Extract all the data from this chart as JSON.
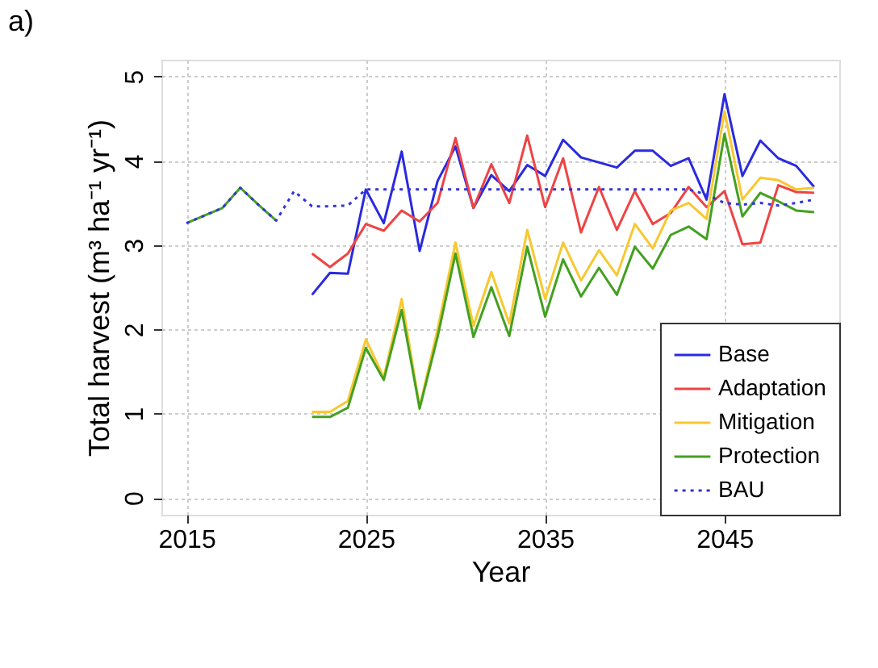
{
  "chart_data": {
    "type": "line",
    "title": "a)",
    "xlabel": "Year",
    "ylabel": "Total harvest (m³ ha⁻¹ yr⁻¹)",
    "x": [
      2015,
      2016,
      2017,
      2018,
      2019,
      2020,
      2021,
      2022,
      2023,
      2024,
      2025,
      2026,
      2027,
      2028,
      2029,
      2030,
      2031,
      2032,
      2033,
      2034,
      2035,
      2036,
      2037,
      2038,
      2039,
      2040,
      2041,
      2042,
      2043,
      2044,
      2045,
      2046,
      2047,
      2048,
      2049,
      2050
    ],
    "series": [
      {
        "name": "Base",
        "color": "#2a2ae0",
        "line_style": "solid",
        "values": [
          null,
          null,
          null,
          null,
          null,
          null,
          null,
          2.41,
          2.67,
          2.66,
          3.66,
          3.26,
          4.11,
          2.93,
          3.76,
          4.17,
          3.44,
          3.83,
          3.64,
          3.95,
          3.82,
          4.25,
          4.04,
          3.98,
          3.92,
          4.12,
          4.12,
          3.94,
          4.03,
          3.54,
          4.79,
          3.82,
          4.24,
          4.03,
          3.94,
          3.69
        ]
      },
      {
        "name": "Adaptation",
        "color": "#ee4444",
        "line_style": "solid",
        "values": [
          null,
          null,
          null,
          null,
          null,
          null,
          null,
          2.9,
          2.74,
          2.9,
          3.25,
          3.17,
          3.41,
          3.28,
          3.5,
          4.27,
          3.44,
          3.96,
          3.5,
          4.3,
          3.45,
          4.03,
          3.15,
          3.69,
          3.18,
          3.64,
          3.25,
          3.38,
          3.69,
          3.45,
          3.64,
          3.01,
          3.03,
          3.71,
          3.63,
          3.62
        ]
      },
      {
        "name": "Mitigation",
        "color": "#f8c830",
        "line_style": "solid",
        "values": [
          null,
          null,
          null,
          null,
          null,
          null,
          null,
          1.02,
          1.02,
          1.15,
          1.88,
          1.43,
          2.36,
          1.08,
          2.0,
          3.03,
          2.04,
          2.68,
          2.07,
          3.18,
          2.36,
          3.03,
          2.58,
          2.94,
          2.64,
          3.25,
          2.96,
          3.41,
          3.5,
          3.31,
          4.59,
          3.54,
          3.8,
          3.77,
          3.66,
          3.68
        ]
      },
      {
        "name": "Protection",
        "color": "#44a022",
        "line_style": "solid",
        "values": [
          3.26,
          3.35,
          3.44,
          3.68,
          3.48,
          3.29,
          null,
          0.96,
          0.96,
          1.07,
          1.78,
          1.4,
          2.23,
          1.06,
          1.91,
          2.9,
          1.91,
          2.5,
          1.92,
          2.98,
          2.15,
          2.83,
          2.39,
          2.73,
          2.41,
          2.98,
          2.72,
          3.12,
          3.22,
          3.07,
          4.32,
          3.34,
          3.62,
          3.52,
          3.41,
          3.39
        ]
      },
      {
        "name": "BAU",
        "color": "#3333dd",
        "line_style": "dotted",
        "values": [
          3.26,
          3.35,
          3.44,
          3.68,
          3.48,
          3.29,
          3.64,
          3.46,
          3.46,
          3.47,
          3.66,
          3.66,
          3.66,
          3.66,
          3.66,
          3.66,
          3.66,
          3.66,
          3.66,
          3.66,
          3.66,
          3.66,
          3.66,
          3.66,
          3.66,
          3.66,
          3.66,
          3.66,
          3.66,
          3.6,
          3.5,
          3.48,
          3.5,
          3.47,
          3.5,
          3.54
        ]
      }
    ],
    "xlim": [
      2013.6,
      2051.4
    ],
    "xticks": [
      2015,
      2025,
      2035,
      2045
    ],
    "ylim": [
      -0.2,
      5.2
    ],
    "yticks": [
      0,
      1,
      2,
      3,
      4,
      5
    ],
    "grid": true,
    "legend": "bottom right",
    "marker": "none"
  }
}
